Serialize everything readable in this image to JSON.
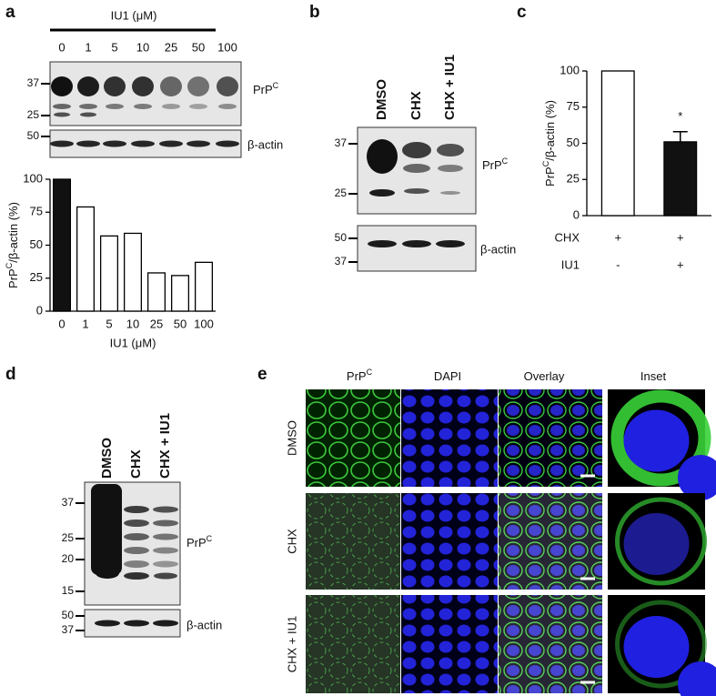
{
  "chart_data": [
    {
      "type": "bar",
      "xlabel": "IU1 (μM)",
      "ylabel": {
        "main": "PrP",
        "sup": "C",
        "rest": "/β-actin (%)"
      },
      "categories": [
        "0",
        "1",
        "5",
        "10",
        "25",
        "50",
        "100"
      ],
      "values": [
        100,
        79,
        57,
        59,
        29,
        27,
        37
      ],
      "colors": [
        "#111111",
        "#ffffff",
        "#ffffff",
        "#ffffff",
        "#ffffff",
        "#ffffff",
        "#ffffff"
      ],
      "ylim": [
        0,
        100
      ],
      "yticks": [
        0,
        25,
        50,
        75,
        100
      ]
    },
    {
      "type": "bar",
      "ylabel": {
        "main": "PrP",
        "sup": "C",
        "rest": "/β-actin (%)"
      },
      "values": [
        100,
        51
      ],
      "errors": [
        null,
        7
      ],
      "colors": [
        "#ffffff",
        "#111111"
      ],
      "annotation": "*",
      "ylim": [
        0,
        100
      ],
      "yticks": [
        0,
        25,
        50,
        75,
        100
      ],
      "conditions": [
        {
          "name": "CHX",
          "marks": [
            "+",
            "+"
          ]
        },
        {
          "name": "IU1",
          "marks": [
            "-",
            "+"
          ]
        }
      ]
    }
  ],
  "panel_labels": [
    "a",
    "b",
    "c",
    "d",
    "e"
  ],
  "blot_a": {
    "header": "IU1 (μM)",
    "lanes": [
      "0",
      "1",
      "5",
      "10",
      "25",
      "50",
      "100"
    ],
    "markers_top": [
      37,
      25
    ],
    "markers_bottom": [
      50
    ],
    "target": {
      "main": "PrP",
      "sup": "C"
    },
    "control": "β-actin"
  },
  "blot_b": {
    "lanes": [
      "DMSO",
      "CHX",
      "CHX + IU1"
    ],
    "markers_top": [
      37,
      25
    ],
    "markers_bottom": [
      50,
      37
    ],
    "target": {
      "main": "PrP",
      "sup": "C"
    },
    "control": "β-actin"
  },
  "blot_d": {
    "lanes": [
      "DMSO",
      "CHX",
      "CHX + IU1"
    ],
    "markers_top": [
      37,
      25,
      20,
      15
    ],
    "markers_bottom": [
      50,
      37
    ],
    "target": {
      "main": "PrP",
      "sup": "C"
    },
    "control": "β-actin"
  },
  "panel_e": {
    "columns": [
      {
        "main": "PrP",
        "sup": "C"
      },
      {
        "main": "DAPI"
      },
      {
        "main": "Overlay"
      },
      {
        "main": "Inset"
      }
    ],
    "rows": [
      "DMSO",
      "CHX",
      "CHX + IU1"
    ]
  }
}
